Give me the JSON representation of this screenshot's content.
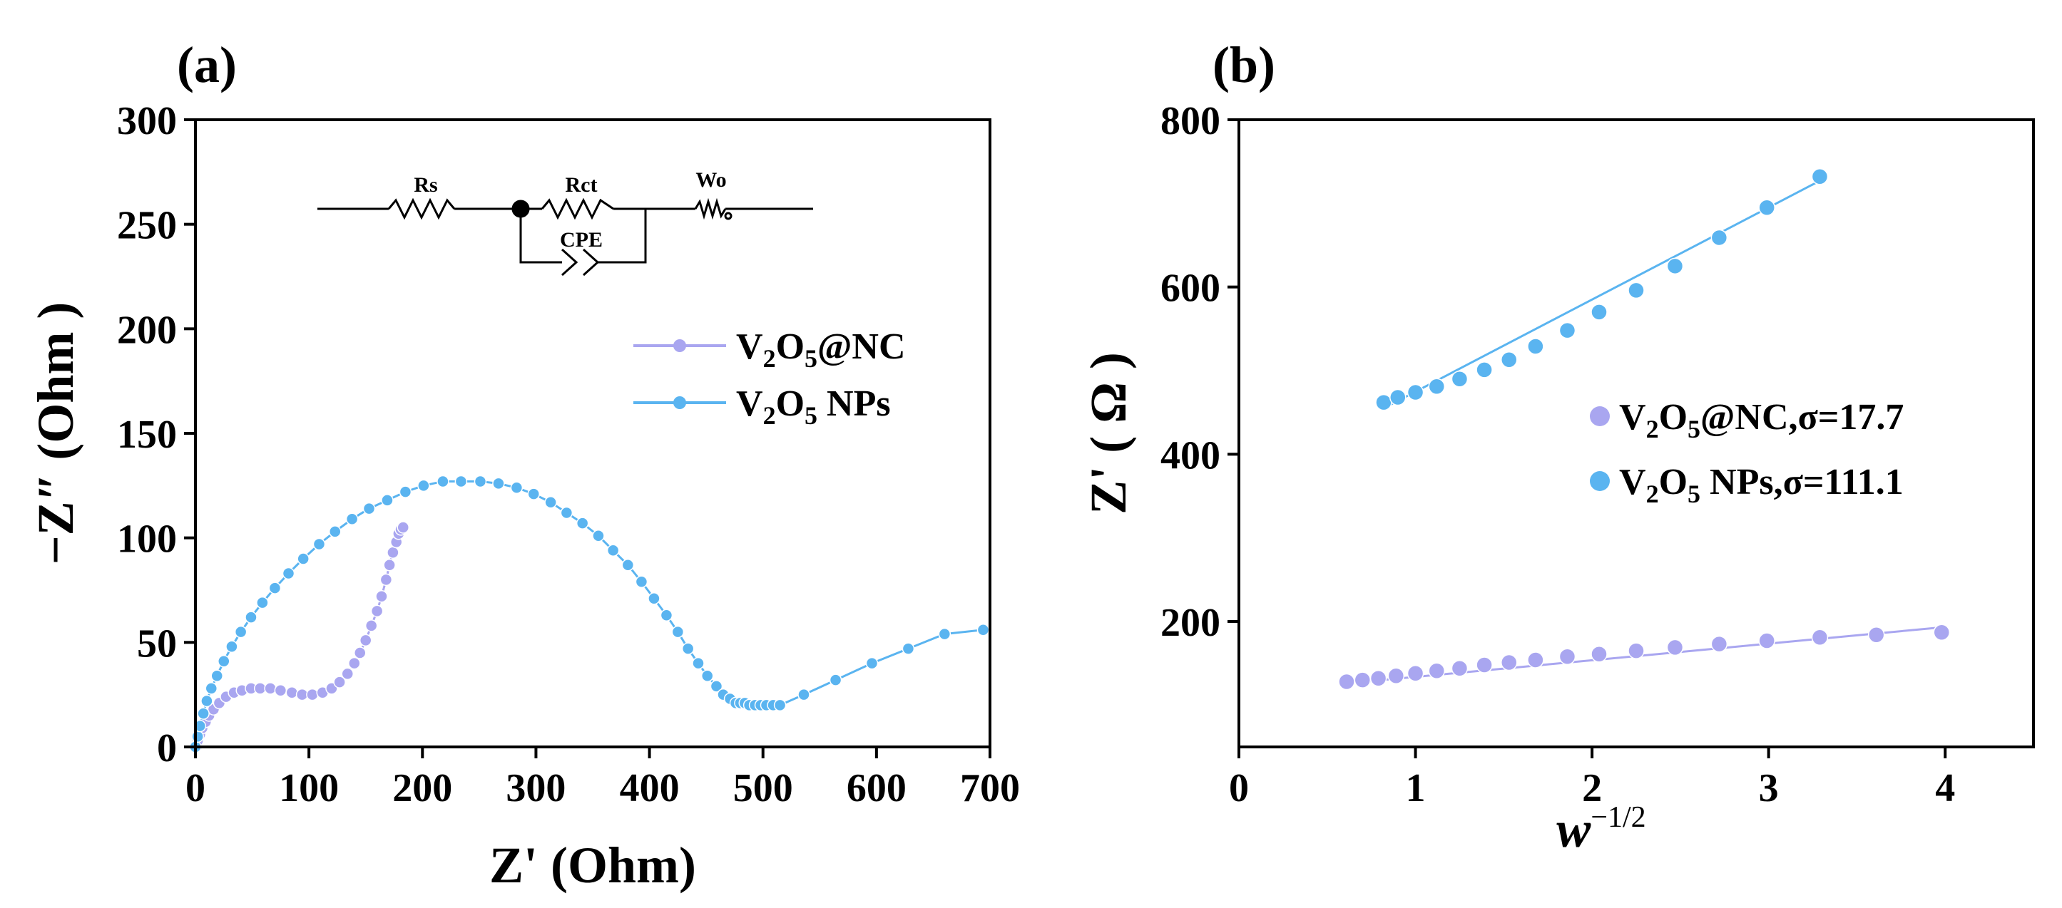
{
  "chart_data": [
    {
      "panel": "(a)",
      "type": "scatter",
      "xlabel": "Z' (Ohm)",
      "ylabel": "−Z″ (Ohm )",
      "xlim": [
        0,
        700
      ],
      "ylim": [
        0,
        300
      ],
      "xticks": [
        0,
        100,
        200,
        300,
        400,
        500,
        600,
        700
      ],
      "yticks": [
        0,
        50,
        100,
        150,
        200,
        250,
        300
      ],
      "legend_position": "center-right",
      "circuit": {
        "rs": "Rs",
        "rct": "Rct",
        "wo": "Wo",
        "cpe": "CPE"
      },
      "series": [
        {
          "name_main": "V",
          "name_sub1": "2",
          "name_mid": "O",
          "name_sub2": "5",
          "name_tail": "@NC",
          "color": "#a9a6f0",
          "x": [
            1,
            2,
            4,
            6,
            9,
            12,
            16,
            21,
            27,
            34,
            41,
            49,
            57,
            66,
            75,
            85,
            94,
            103,
            112,
            120,
            127,
            134,
            140,
            145,
            150,
            155,
            160,
            164,
            168,
            171,
            174,
            177,
            179,
            181,
            183
          ],
          "y": [
            0,
            3,
            6,
            9,
            12,
            15,
            18,
            21,
            24,
            26,
            27,
            28,
            28,
            28,
            27,
            26,
            25,
            25,
            26,
            28,
            31,
            35,
            40,
            45,
            51,
            58,
            65,
            72,
            80,
            87,
            93,
            98,
            102,
            104,
            105
          ]
        },
        {
          "name_main": "V",
          "name_sub1": "2",
          "name_mid": "O",
          "name_sub2": "5",
          "name_tail": " NPs",
          "color": "#5ab4f0",
          "x": [
            0,
            2,
            4,
            7,
            10,
            14,
            19,
            25,
            32,
            40,
            49,
            59,
            70,
            82,
            95,
            109,
            123,
            138,
            153,
            169,
            185,
            201,
            218,
            234,
            251,
            267,
            283,
            298,
            313,
            327,
            341,
            355,
            368,
            381,
            393,
            404,
            415,
            425,
            434,
            443,
            451,
            459,
            465,
            471,
            476,
            480,
            484,
            488,
            493,
            498,
            503,
            509,
            515,
            536,
            564,
            596,
            628,
            660,
            694
          ],
          "y": [
            0,
            5,
            10,
            16,
            22,
            28,
            34,
            41,
            48,
            55,
            62,
            69,
            76,
            83,
            90,
            97,
            103,
            109,
            114,
            118,
            122,
            125,
            127,
            127,
            127,
            126,
            124,
            121,
            117,
            112,
            107,
            101,
            94,
            87,
            79,
            71,
            63,
            55,
            47,
            40,
            34,
            29,
            25,
            23,
            21,
            21,
            21,
            20,
            20,
            20,
            20,
            20,
            20,
            25,
            32,
            40,
            47,
            54,
            56
          ]
        }
      ]
    },
    {
      "panel": "(b)",
      "type": "scatter",
      "xlabel_base": "w",
      "xlabel_sup": "−1/2",
      "ylabel": "Z' ( Ω )",
      "xlim": [
        0,
        4.5
      ],
      "ylim": [
        50,
        800
      ],
      "xticks": [
        0,
        1,
        2,
        3,
        4
      ],
      "yticks": [
        200,
        400,
        600,
        800
      ],
      "legend_position": "center-right",
      "series": [
        {
          "name_main": "V",
          "name_sub1": "2",
          "name_mid": "O",
          "name_sub2": "5",
          "name_tail": "@NC,σ=17.7",
          "color": "#a9a6f0",
          "x": [
            0.61,
            0.7,
            0.79,
            0.89,
            1.0,
            1.12,
            1.25,
            1.39,
            1.53,
            1.68,
            1.86,
            2.04,
            2.25,
            2.47,
            2.72,
            2.99,
            3.29,
            3.61,
            3.98
          ],
          "y": [
            128,
            130,
            132,
            135,
            138,
            141,
            144,
            148,
            151,
            154,
            158,
            161,
            165,
            169,
            173,
            177,
            181,
            184,
            187
          ],
          "fit": {
            "x": [
              0.61,
              3.98
            ],
            "y": [
              126,
              193
            ]
          }
        },
        {
          "name_main": "V",
          "name_sub1": "2",
          "name_mid": "O",
          "name_sub2": "5",
          "name_tail": " NPs,σ=111.1",
          "color": "#5ab4f0",
          "x": [
            0.82,
            0.9,
            1.0,
            1.12,
            1.25,
            1.39,
            1.53,
            1.68,
            1.86,
            2.04,
            2.25,
            2.47,
            2.72,
            2.99,
            3.29
          ],
          "y": [
            462,
            468,
            474,
            481,
            490,
            501,
            513,
            529,
            548,
            570,
            596,
            625,
            659,
            695,
            732
          ],
          "fit": {
            "x": [
              0.82,
              3.29
            ],
            "y": [
              455,
              727
            ]
          }
        }
      ]
    }
  ]
}
